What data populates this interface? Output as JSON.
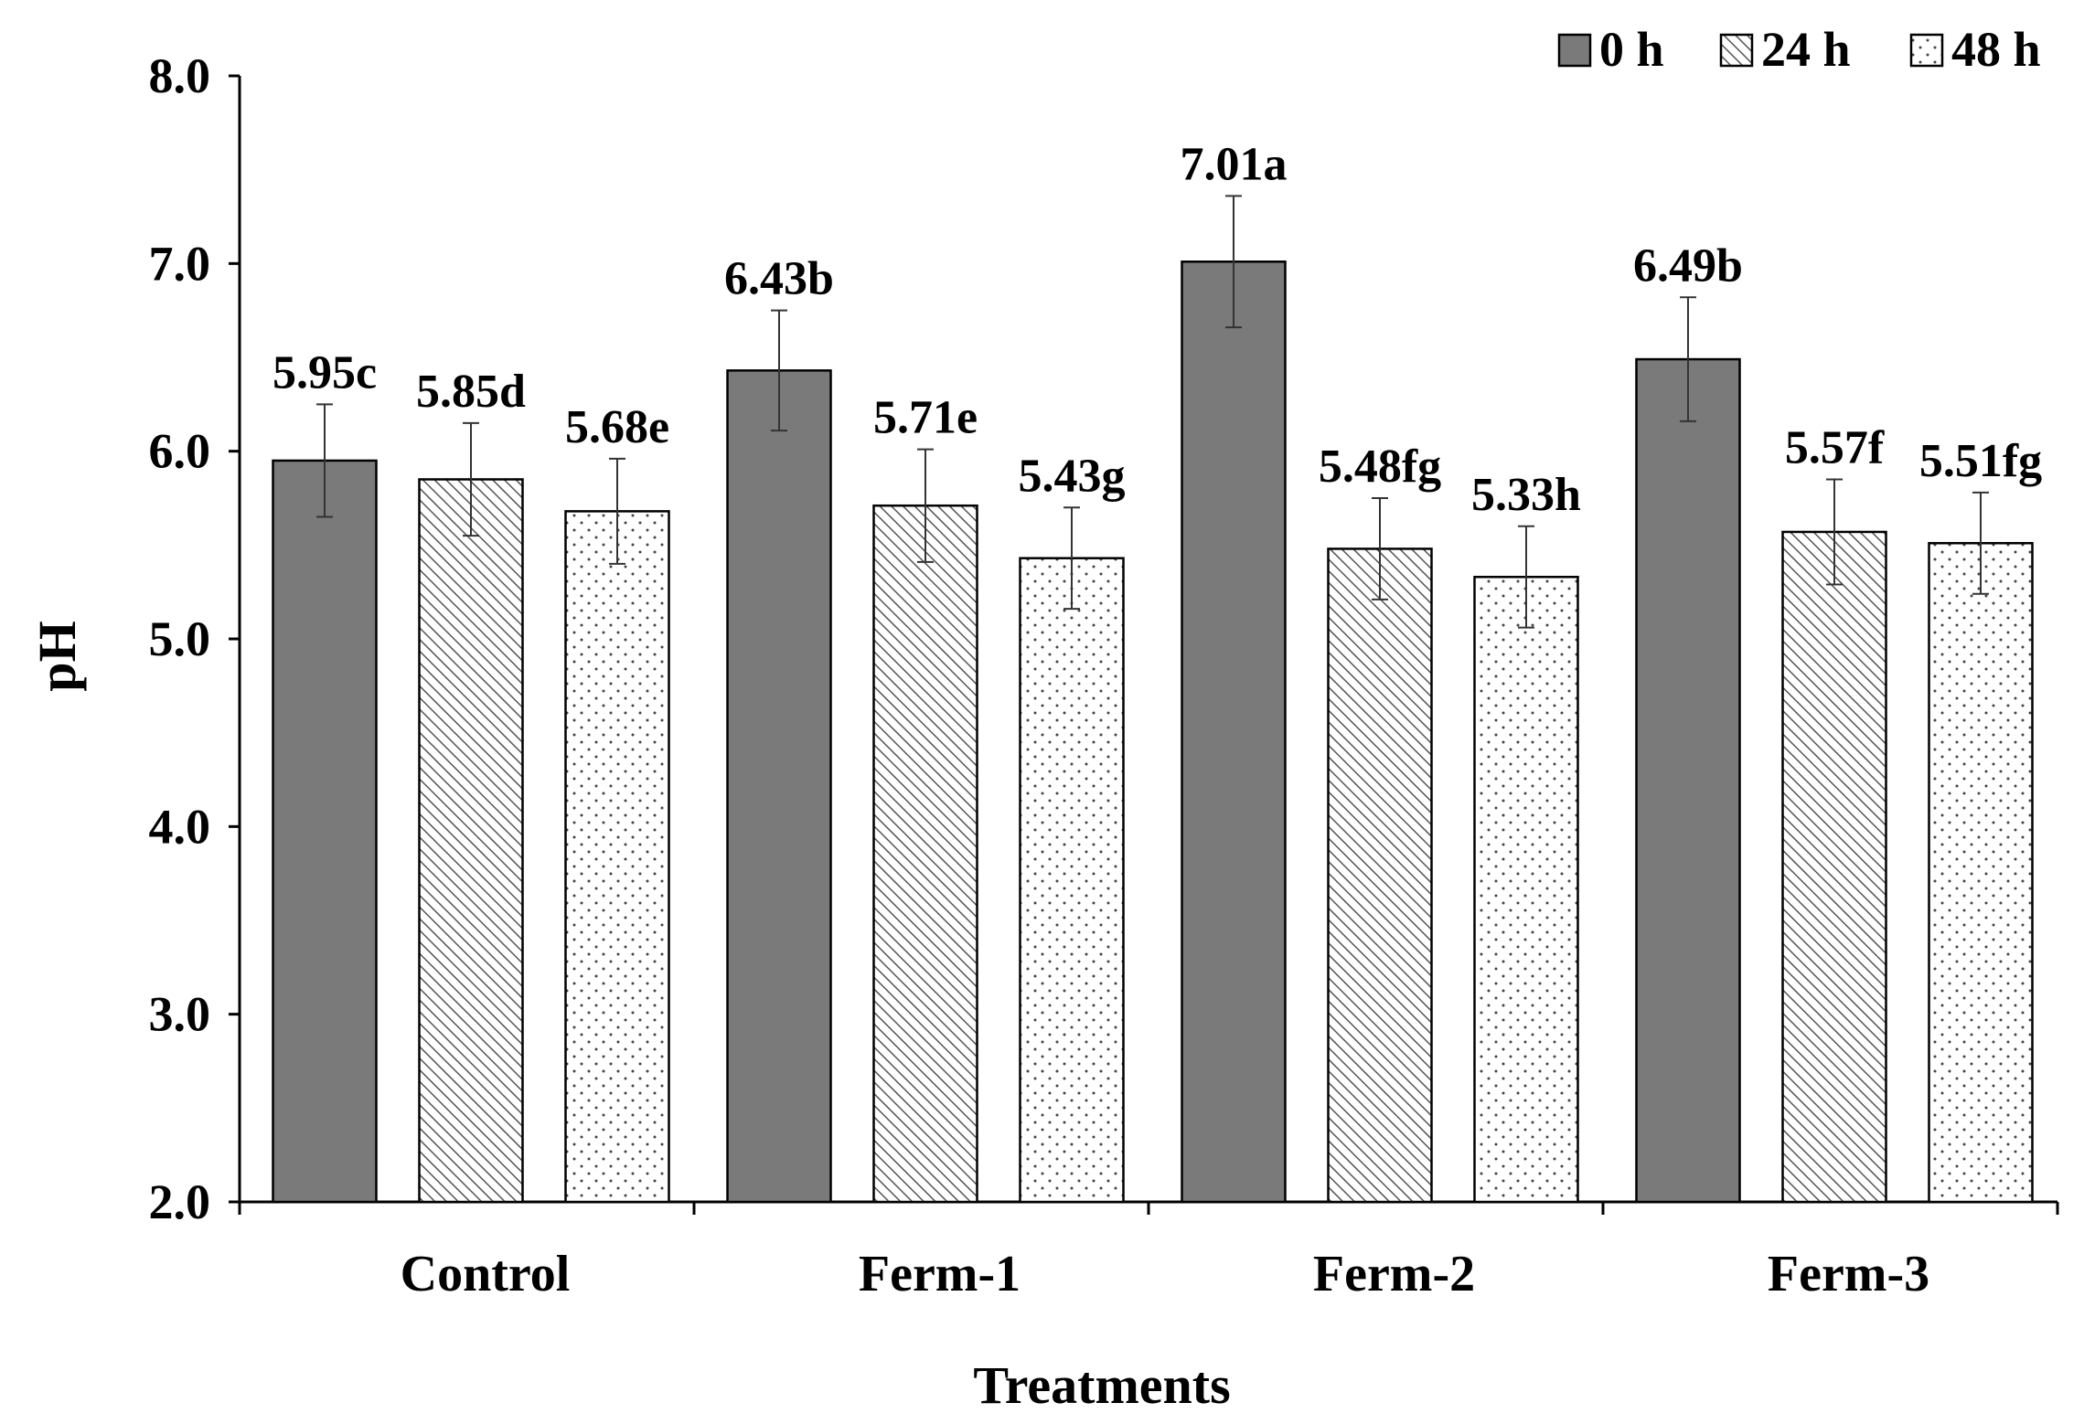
{
  "chart_data": {
    "type": "bar",
    "title": "",
    "xlabel": "Treatments",
    "ylabel": "pH",
    "ylim": [
      2.0,
      8.0
    ],
    "yticks": [
      "2.0",
      "3.0",
      "4.0",
      "5.0",
      "6.0",
      "7.0",
      "8.0"
    ],
    "yticks_values": [
      2,
      3,
      4,
      5,
      6,
      7,
      8
    ],
    "categories": [
      "Control",
      "Ferm-1",
      "Ferm-2",
      "Ferm-3"
    ],
    "legend_position": "top-right",
    "series": [
      {
        "name": "0 h",
        "pattern": "solid",
        "color": "#7a7a7a",
        "values": [
          5.95,
          6.43,
          7.01,
          6.49
        ],
        "errors": [
          0.3,
          0.32,
          0.35,
          0.33
        ],
        "labels": [
          "5.95c",
          "6.43b",
          "7.01a",
          "6.49b"
        ]
      },
      {
        "name": "24 h",
        "pattern": "diagonal-hatch",
        "color": "#555555",
        "values": [
          5.85,
          5.71,
          5.48,
          5.57
        ],
        "errors": [
          0.3,
          0.3,
          0.27,
          0.28
        ],
        "labels": [
          "5.85d",
          "5.71e",
          "5.48fg",
          "5.57f"
        ]
      },
      {
        "name": "48 h",
        "pattern": "dotted",
        "color": "#444444",
        "values": [
          5.68,
          5.43,
          5.33,
          5.51
        ],
        "errors": [
          0.28,
          0.27,
          0.27,
          0.27
        ],
        "labels": [
          "5.68e",
          "5.43g",
          "5.33h",
          "5.51fg"
        ]
      }
    ]
  }
}
